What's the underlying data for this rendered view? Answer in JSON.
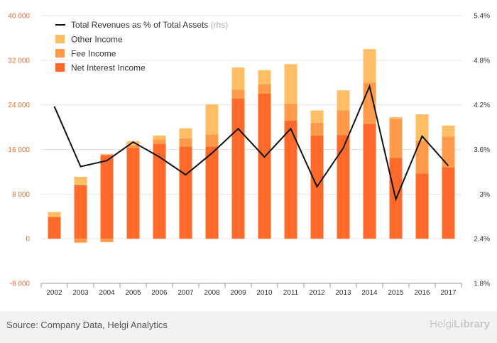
{
  "chart_data": {
    "type": "bar",
    "categories": [
      "2002",
      "2003",
      "2004",
      "2005",
      "2006",
      "2007",
      "2008",
      "2009",
      "2010",
      "2011",
      "2012",
      "2013",
      "2014",
      "2015",
      "2016",
      "2017"
    ],
    "series": [
      {
        "name": "Net Interest Income",
        "color": "#ff6a2a",
        "values": [
          3900,
          9600,
          15000,
          16300,
          17000,
          16500,
          16500,
          25100,
          26000,
          21200,
          18500,
          18600,
          20600,
          14500,
          11700,
          12800
        ]
      },
      {
        "name": "Fee Income",
        "color": "#ff9a4a",
        "values": [
          0,
          -700,
          -600,
          500,
          800,
          1500,
          2200,
          1600,
          1700,
          3000,
          2300,
          4400,
          7400,
          7000,
          5900,
          5500
        ]
      },
      {
        "name": "Other Income",
        "color": "#ffbd66",
        "values": [
          900,
          1500,
          200,
          700,
          700,
          1800,
          5400,
          4000,
          2500,
          7100,
          2200,
          3600,
          6000,
          300,
          4700,
          2000
        ]
      }
    ],
    "line": {
      "name": "Total Revenues as % of Total Assets",
      "tag": "(rhs)",
      "color": "#111111",
      "values": [
        4.18,
        3.37,
        3.45,
        3.7,
        3.5,
        3.26,
        3.55,
        3.88,
        3.5,
        3.88,
        3.1,
        3.62,
        4.45,
        2.93,
        3.78,
        3.38
      ]
    },
    "y_left": {
      "min": -8000,
      "max": 40000,
      "ticks": [
        -8000,
        0,
        8000,
        16000,
        24000,
        32000,
        40000
      ],
      "tick_labels": [
        "-8 000",
        "0",
        "8 000",
        "16 000",
        "24 000",
        "32 000",
        "40 000"
      ]
    },
    "y_right": {
      "min": 1.8,
      "max": 5.4,
      "ticks": [
        1.8,
        2.4,
        3.0,
        3.6,
        4.2,
        4.8,
        5.4
      ],
      "tick_labels": [
        "1.8%",
        "2.4%",
        "3%",
        "3.6%",
        "4.2%",
        "4.8%",
        "5.4%"
      ]
    },
    "grid": "horizontal",
    "legend_position": "top-left"
  },
  "footer": {
    "source": "Source: Company Data, Helgi Analytics",
    "logo_part1": "Helgi",
    "logo_part2": "Library"
  }
}
